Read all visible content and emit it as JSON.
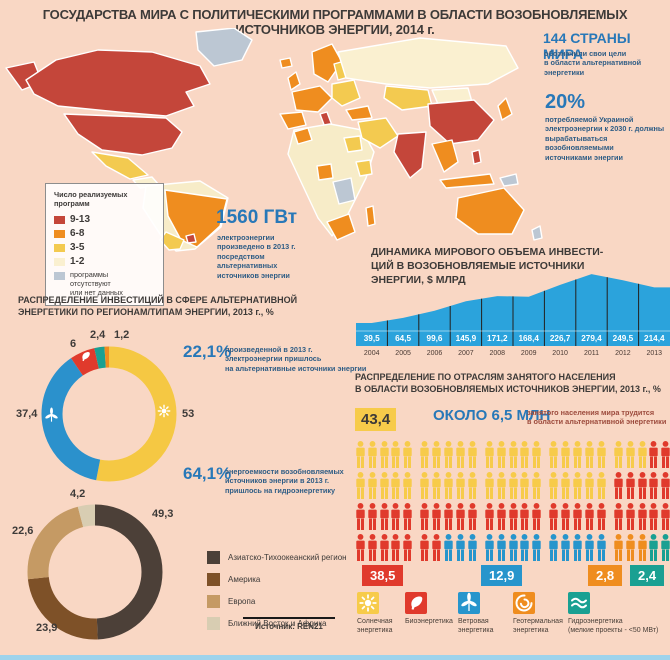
{
  "title": "ГОСУДАРСТВА МИРА С ПОЛИТИЧЕСКИМИ ПРОГРАММАМИ В ОБЛАСТИ ВОЗОБНОВЛЯЕМЫХ ИСТОЧНИКОВ ЭНЕРГИИ, 2014 г.",
  "palette": {
    "background": "#f9d7c4",
    "accent_blue": "#2878b8",
    "chart_blue": "#2ba3dc",
    "map_red": "#c4463a",
    "map_orange": "#ef8d1f",
    "map_yellow": "#f3ca50",
    "map_cream": "#faf0d0",
    "map_nodata_gray": "#bcc7d3"
  },
  "map_legend": {
    "title": "Число реализуемых\nпрограмм",
    "items": [
      {
        "label": "9-13",
        "color": "#c4463a"
      },
      {
        "label": "6-8",
        "color": "#ef8d1f"
      },
      {
        "label": "3-5",
        "color": "#f3ca50"
      },
      {
        "label": "1-2",
        "color": "#faf0d0"
      },
      {
        "label": "программы\nотсутствуют\nили нет данных",
        "color": "#bcc7d3"
      }
    ]
  },
  "stats": {
    "countries_value": "144 СТРАНЫ МИРА",
    "countries_caption": "обозначили свои цели\nв области альтернативной\nэнергетики",
    "ukraine_value": "20%",
    "ukraine_caption": "потребляемой Украиной\nэлектроэнергии к 2030 г. должны\nвырабатываться возобновляемыми\nисточниками энергии",
    "generation_value": "1560 ГВт",
    "generation_caption": "электроэнергии\nпроизведено в 2013 г.\nпосредством\nальтернативных\nисточников энергии",
    "electricity_share_value": "22,1%",
    "electricity_share_caption": "произведенной в 2013 г.\nэлектроэнергии пришлось\nна альтернативные источники энергии",
    "hydro_share_value": "64,1%",
    "hydro_share_caption": "энергоемкости возобновляемых\nисточников энергии в 2013 г.\nпришлось на гидроэнергетику"
  },
  "sections": {
    "invest_regions_title": "РАСПРЕДЕЛЕНИЕ ИНВЕСТИЦИЙ В СФЕРЕ АЛЬТЕРНАТИВНОЙ\nЭНЕРГЕТИКИ ПО РЕГИОНАМ/ТИПАМ ЭНЕРГИИ, 2013 г., %",
    "employment_title": "РАСПРЕДЕЛЕНИЕ ПО ОТРАСЛЯМ ЗАНЯТОГО НАСЕЛЕНИЯ\nВ ОБЛАСТИ ВОЗОБНОВЛЯЕМЫХ ИСТОЧНИКОВ ЭНЕРГИИ, 2013 г., %"
  },
  "employment": {
    "total_value": "ОКОЛО 6,5 МЛН",
    "total_caption": "занятого населения мира трудится\nв области альтернативной энергетики"
  },
  "source": "Источник: REN21",
  "chart_data": [
    {
      "type": "area",
      "title": "ДИНАМИКА МИРОВОГО ОБЪЕМА ИНВЕСТИ-\nЦИЙ В ВОЗОБНОВЛЯЕМЫЕ ИСТОЧНИКИ\nЭНЕРГИИ, $ МЛРД",
      "x": [
        "2004",
        "2005",
        "2006",
        "2007",
        "2008",
        "2009",
        "2010",
        "2011",
        "2012",
        "2013"
      ],
      "values": [
        39.5,
        64.5,
        99.6,
        145.9,
        171.2,
        168.4,
        226.7,
        279.4,
        249.5,
        214.4
      ],
      "value_labels": [
        "39,5",
        "64,5",
        "99,6",
        "145,9",
        "171,2",
        "168,4",
        "226,7",
        "279,4",
        "249,5",
        "214,4"
      ],
      "color": "#2ba3dc",
      "ylim": [
        0,
        280
      ],
      "grid": false,
      "legend_position": "none"
    },
    {
      "type": "pie",
      "name": "investment-by-energy-type",
      "units": "%",
      "slices": [
        {
          "label": "Солнечная энергетика",
          "value": 53,
          "display": "53",
          "color": "#f5c843"
        },
        {
          "label": "Ветровая энергетика",
          "value": 37.4,
          "display": "37,4",
          "color": "#2b91cc"
        },
        {
          "label": "Биоэнергетика",
          "value": 6,
          "display": "6",
          "color": "#e03a2c"
        },
        {
          "label": "Гидроэнергетика",
          "value": 2.4,
          "display": "2,4",
          "color": "#1aa092"
        },
        {
          "label": "Геотермальная энергетика",
          "value": 1.2,
          "display": "1,2",
          "color": "#ef8d1f"
        }
      ]
    },
    {
      "type": "pie",
      "name": "investment-by-region",
      "units": "%",
      "slices": [
        {
          "label": "Азиатско-Тихоокеанский регион",
          "value": 49.3,
          "display": "49,3",
          "color": "#4c4038"
        },
        {
          "label": "Америка",
          "value": 23.9,
          "display": "23,9",
          "color": "#7e5128"
        },
        {
          "label": "Европа",
          "value": 22.6,
          "display": "22,6",
          "color": "#c59a64"
        },
        {
          "label": "Ближний Восток и Африка",
          "value": 4.2,
          "display": "4,2",
          "color": "#d8cdb2"
        }
      ]
    },
    {
      "type": "pictogram",
      "name": "employment-by-sector",
      "units": "%",
      "sectors": [
        {
          "label": "Солнечная\nэнергетика",
          "value": 43.4,
          "display": "43,4",
          "color": "#f7cb4a"
        },
        {
          "label": "Биоэнергетика",
          "value": 38.5,
          "display": "38,5",
          "color": "#e03a2c"
        },
        {
          "label": "Ветровая\nэнергетика",
          "value": 12.9,
          "display": "12,9",
          "color": "#2795cc"
        },
        {
          "label": "Геотермальная\nэнергетика",
          "value": 2.8,
          "display": "2,8",
          "color": "#ef8d1f"
        },
        {
          "label": "Гидроэнергетика\n(мелкие проекты - <50 МВт)",
          "value": 2.4,
          "display": "2,4",
          "color": "#1aa092"
        }
      ],
      "rows": [
        "YYYYYYYYYYYYYYYYYYYYYYYRR",
        "YYYYYYYYYYYYYYYYYYYYRRRRR",
        "RRRRRRRRRRRRRRRRRRRRRRRRR",
        "RRRRRRRBBBBBBBBBBBBBOOOTT"
      ],
      "letter_to_sector": {
        "Y": 0,
        "R": 1,
        "B": 2,
        "O": 3,
        "T": 4
      }
    }
  ]
}
